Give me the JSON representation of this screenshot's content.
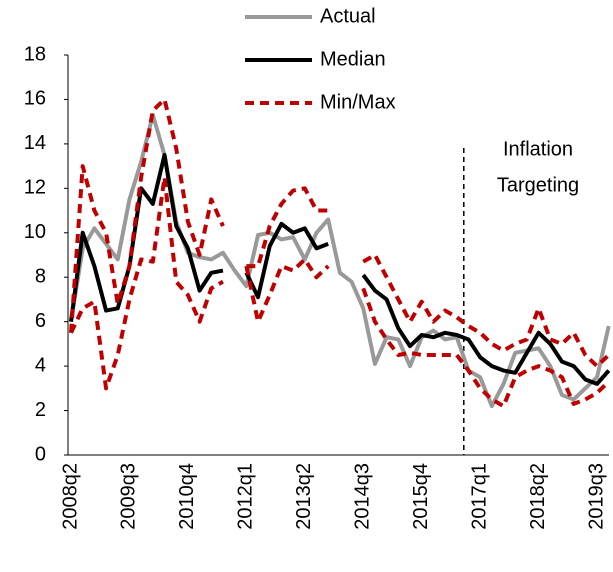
{
  "chart_data": {
    "type": "line",
    "categories": [
      "2008q2",
      null,
      null,
      null,
      null,
      "2009q3",
      null,
      null,
      null,
      null,
      "2010q4",
      null,
      null,
      null,
      null,
      "2012q1",
      null,
      null,
      null,
      null,
      "2013q2",
      null,
      null,
      null,
      null,
      "2014q3",
      null,
      null,
      null,
      null,
      "2015q4",
      null,
      null,
      null,
      null,
      "2017q1",
      null,
      null,
      null,
      null,
      "2018q2",
      null,
      null,
      null,
      null,
      "2019q3",
      null
    ],
    "series": [
      {
        "name": "Actual",
        "color": "#999999",
        "dash": "none",
        "values": [
          6.0,
          9.3,
          10.2,
          9.5,
          8.8,
          11.5,
          13.2,
          15.3,
          13.5,
          10.5,
          9.1,
          8.9,
          8.8,
          9.1,
          8.3,
          7.6,
          9.9,
          10.0,
          9.7,
          9.8,
          8.8,
          10.0,
          10.6,
          8.2,
          7.8,
          6.6,
          4.1,
          5.3,
          5.2,
          4.0,
          5.3,
          5.6,
          5.2,
          5.3,
          3.8,
          3.5,
          2.2,
          3.2,
          4.6,
          4.7,
          4.8,
          4.0,
          2.7,
          2.5,
          3.0,
          3.5,
          5.8
        ]
      },
      {
        "name": "Median",
        "color": "#000000",
        "dash": "none",
        "values": [
          6.0,
          10.0,
          8.5,
          6.5,
          6.6,
          8.5,
          12.0,
          11.3,
          13.5,
          10.3,
          9.3,
          7.4,
          8.2,
          8.3,
          null,
          8.2,
          7.1,
          9.4,
          10.4,
          10.0,
          10.2,
          9.3,
          9.5,
          null,
          null,
          8.1,
          7.4,
          7.0,
          5.7,
          4.9,
          5.4,
          5.3,
          5.5,
          5.4,
          5.2,
          4.4,
          4.0,
          3.8,
          3.7,
          4.6,
          5.5,
          5.0,
          4.2,
          4.0,
          3.4,
          3.2,
          3.8
        ]
      },
      {
        "name": "Min/Max",
        "color": "#c00000",
        "dash": "9,6",
        "values": [
          5.5,
          13.0,
          11.0,
          10.0,
          6.8,
          8.5,
          12.5,
          15.5,
          16.0,
          13.8,
          10.5,
          9.0,
          11.5,
          10.3,
          null,
          8.5,
          8.5,
          10.3,
          11.3,
          11.9,
          12.0,
          11.0,
          11.0,
          null,
          null,
          8.7,
          9.0,
          8.0,
          7.0,
          6.0,
          6.9,
          6.0,
          6.5,
          6.2,
          5.8,
          5.5,
          5.0,
          4.7,
          5.0,
          5.2,
          6.6,
          5.2,
          5.0,
          5.5,
          4.5,
          4.0,
          4.5
        ]
      },
      {
        "color": "#c00000",
        "dash": "9,6",
        "values": [
          5.5,
          6.6,
          6.9,
          3.0,
          4.5,
          7.0,
          8.8,
          8.7,
          12.5,
          7.8,
          7.2,
          6.0,
          7.5,
          7.8,
          null,
          8.5,
          6.0,
          7.2,
          8.5,
          8.3,
          8.8,
          8.0,
          8.5,
          null,
          null,
          7.5,
          6.0,
          5.2,
          4.5,
          4.6,
          4.5,
          4.5,
          4.5,
          4.5,
          3.8,
          3.0,
          2.5,
          2.2,
          3.5,
          3.8,
          4.0,
          3.8,
          3.5,
          2.3,
          2.5,
          2.8,
          3.3
        ]
      }
    ],
    "annotation": [
      "Inflation",
      "Targeting"
    ],
    "ylim": [
      0,
      18
    ],
    "yticks": [
      0,
      2,
      4,
      6,
      8,
      10,
      12,
      14,
      16,
      18
    ],
    "grid": false
  }
}
